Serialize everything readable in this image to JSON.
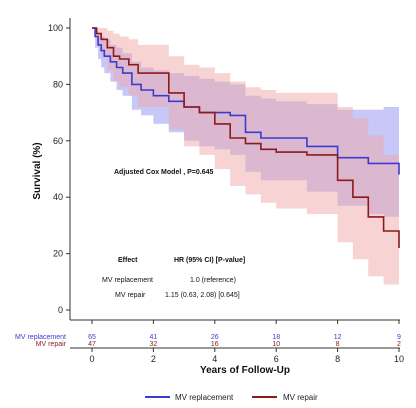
{
  "chart_data": {
    "type": "line",
    "subtype": "kaplan-meier",
    "title": "",
    "xlabel": "Years of Follow-Up",
    "ylabel": "Survival (%)",
    "xlim": [
      0,
      10
    ],
    "ylim": [
      0,
      100
    ],
    "x_ticks": [
      0,
      2,
      4,
      6,
      8,
      10
    ],
    "y_ticks": [
      0,
      20,
      40,
      60,
      80,
      100
    ],
    "grid": false,
    "legend_position": "bottom-center",
    "series": [
      {
        "name": "MV replacement",
        "color": "#3b3bd0",
        "band_color": "#9a9af2",
        "x": [
          0,
          0.1,
          0.2,
          0.3,
          0.4,
          0.6,
          0.8,
          1.0,
          1.3,
          1.6,
          2.0,
          2.5,
          3.0,
          3.5,
          4.0,
          4.5,
          5.0,
          5.5,
          6.0,
          7.0,
          8.0,
          9.0,
          9.5,
          10.0
        ],
        "values": [
          100,
          97,
          94,
          92,
          90,
          88,
          86,
          84,
          80,
          78,
          76,
          74,
          72,
          70,
          70,
          69,
          63,
          61,
          61,
          58,
          54,
          52,
          52,
          48
        ],
        "ci_lower": [
          100,
          93,
          89,
          86,
          84,
          81,
          78,
          76,
          71,
          69,
          66,
          63,
          60,
          58,
          57,
          55,
          49,
          46,
          46,
          42,
          37,
          34,
          33,
          28
        ],
        "ci_upper": [
          100,
          99,
          98,
          97,
          96,
          94,
          93,
          91,
          88,
          86,
          85,
          84,
          83,
          82,
          81,
          80,
          76,
          75,
          74,
          73,
          71,
          71,
          72,
          70
        ]
      },
      {
        "name": "MV repair",
        "color": "#8b1a1a",
        "band_color": "#f0a8a8",
        "x": [
          0,
          0.15,
          0.3,
          0.5,
          0.7,
          0.9,
          1.2,
          1.5,
          2.0,
          2.5,
          3.0,
          3.5,
          4.0,
          4.5,
          5.0,
          5.5,
          6.0,
          7.0,
          8.0,
          8.5,
          9.0,
          9.5,
          10.0
        ],
        "values": [
          100,
          98,
          96,
          93,
          90,
          89,
          87,
          84,
          84,
          77,
          72,
          70,
          66,
          61,
          59,
          57,
          56,
          55,
          46,
          40,
          33,
          28,
          22
        ],
        "ci_lower": [
          100,
          94,
          90,
          85,
          81,
          79,
          76,
          72,
          72,
          64,
          58,
          55,
          50,
          44,
          41,
          38,
          36,
          34,
          24,
          18,
          12,
          9,
          6
        ],
        "ci_upper": [
          100,
          100,
          100,
          99,
          98,
          97,
          96,
          94,
          94,
          90,
          87,
          86,
          84,
          81,
          79,
          78,
          77,
          77,
          72,
          68,
          62,
          55,
          49
        ]
      }
    ],
    "annotations": {
      "cox": "Adjusted Cox Model , P=0.645",
      "table_header_effect": "Effect",
      "table_header_hr": "HR (95% CI) [P-value]",
      "rows": [
        {
          "effect": "MV replacement",
          "hr": "1.0 (reference)"
        },
        {
          "effect": "MV repair",
          "hr": "1.15 (0.63, 2.08) [0.645]"
        }
      ]
    },
    "risk_table": {
      "times": [
        0,
        2,
        4,
        6,
        8,
        10
      ],
      "rows": [
        {
          "label": "MV replacement",
          "color": "#3b3bd0",
          "counts": [
            "65",
            "41",
            "26",
            "18",
            "12",
            "9"
          ]
        },
        {
          "label": "MV repair",
          "color": "#8b1a1a",
          "counts": [
            "47",
            "32",
            "16",
            "10",
            "8",
            "2"
          ]
        }
      ]
    }
  }
}
